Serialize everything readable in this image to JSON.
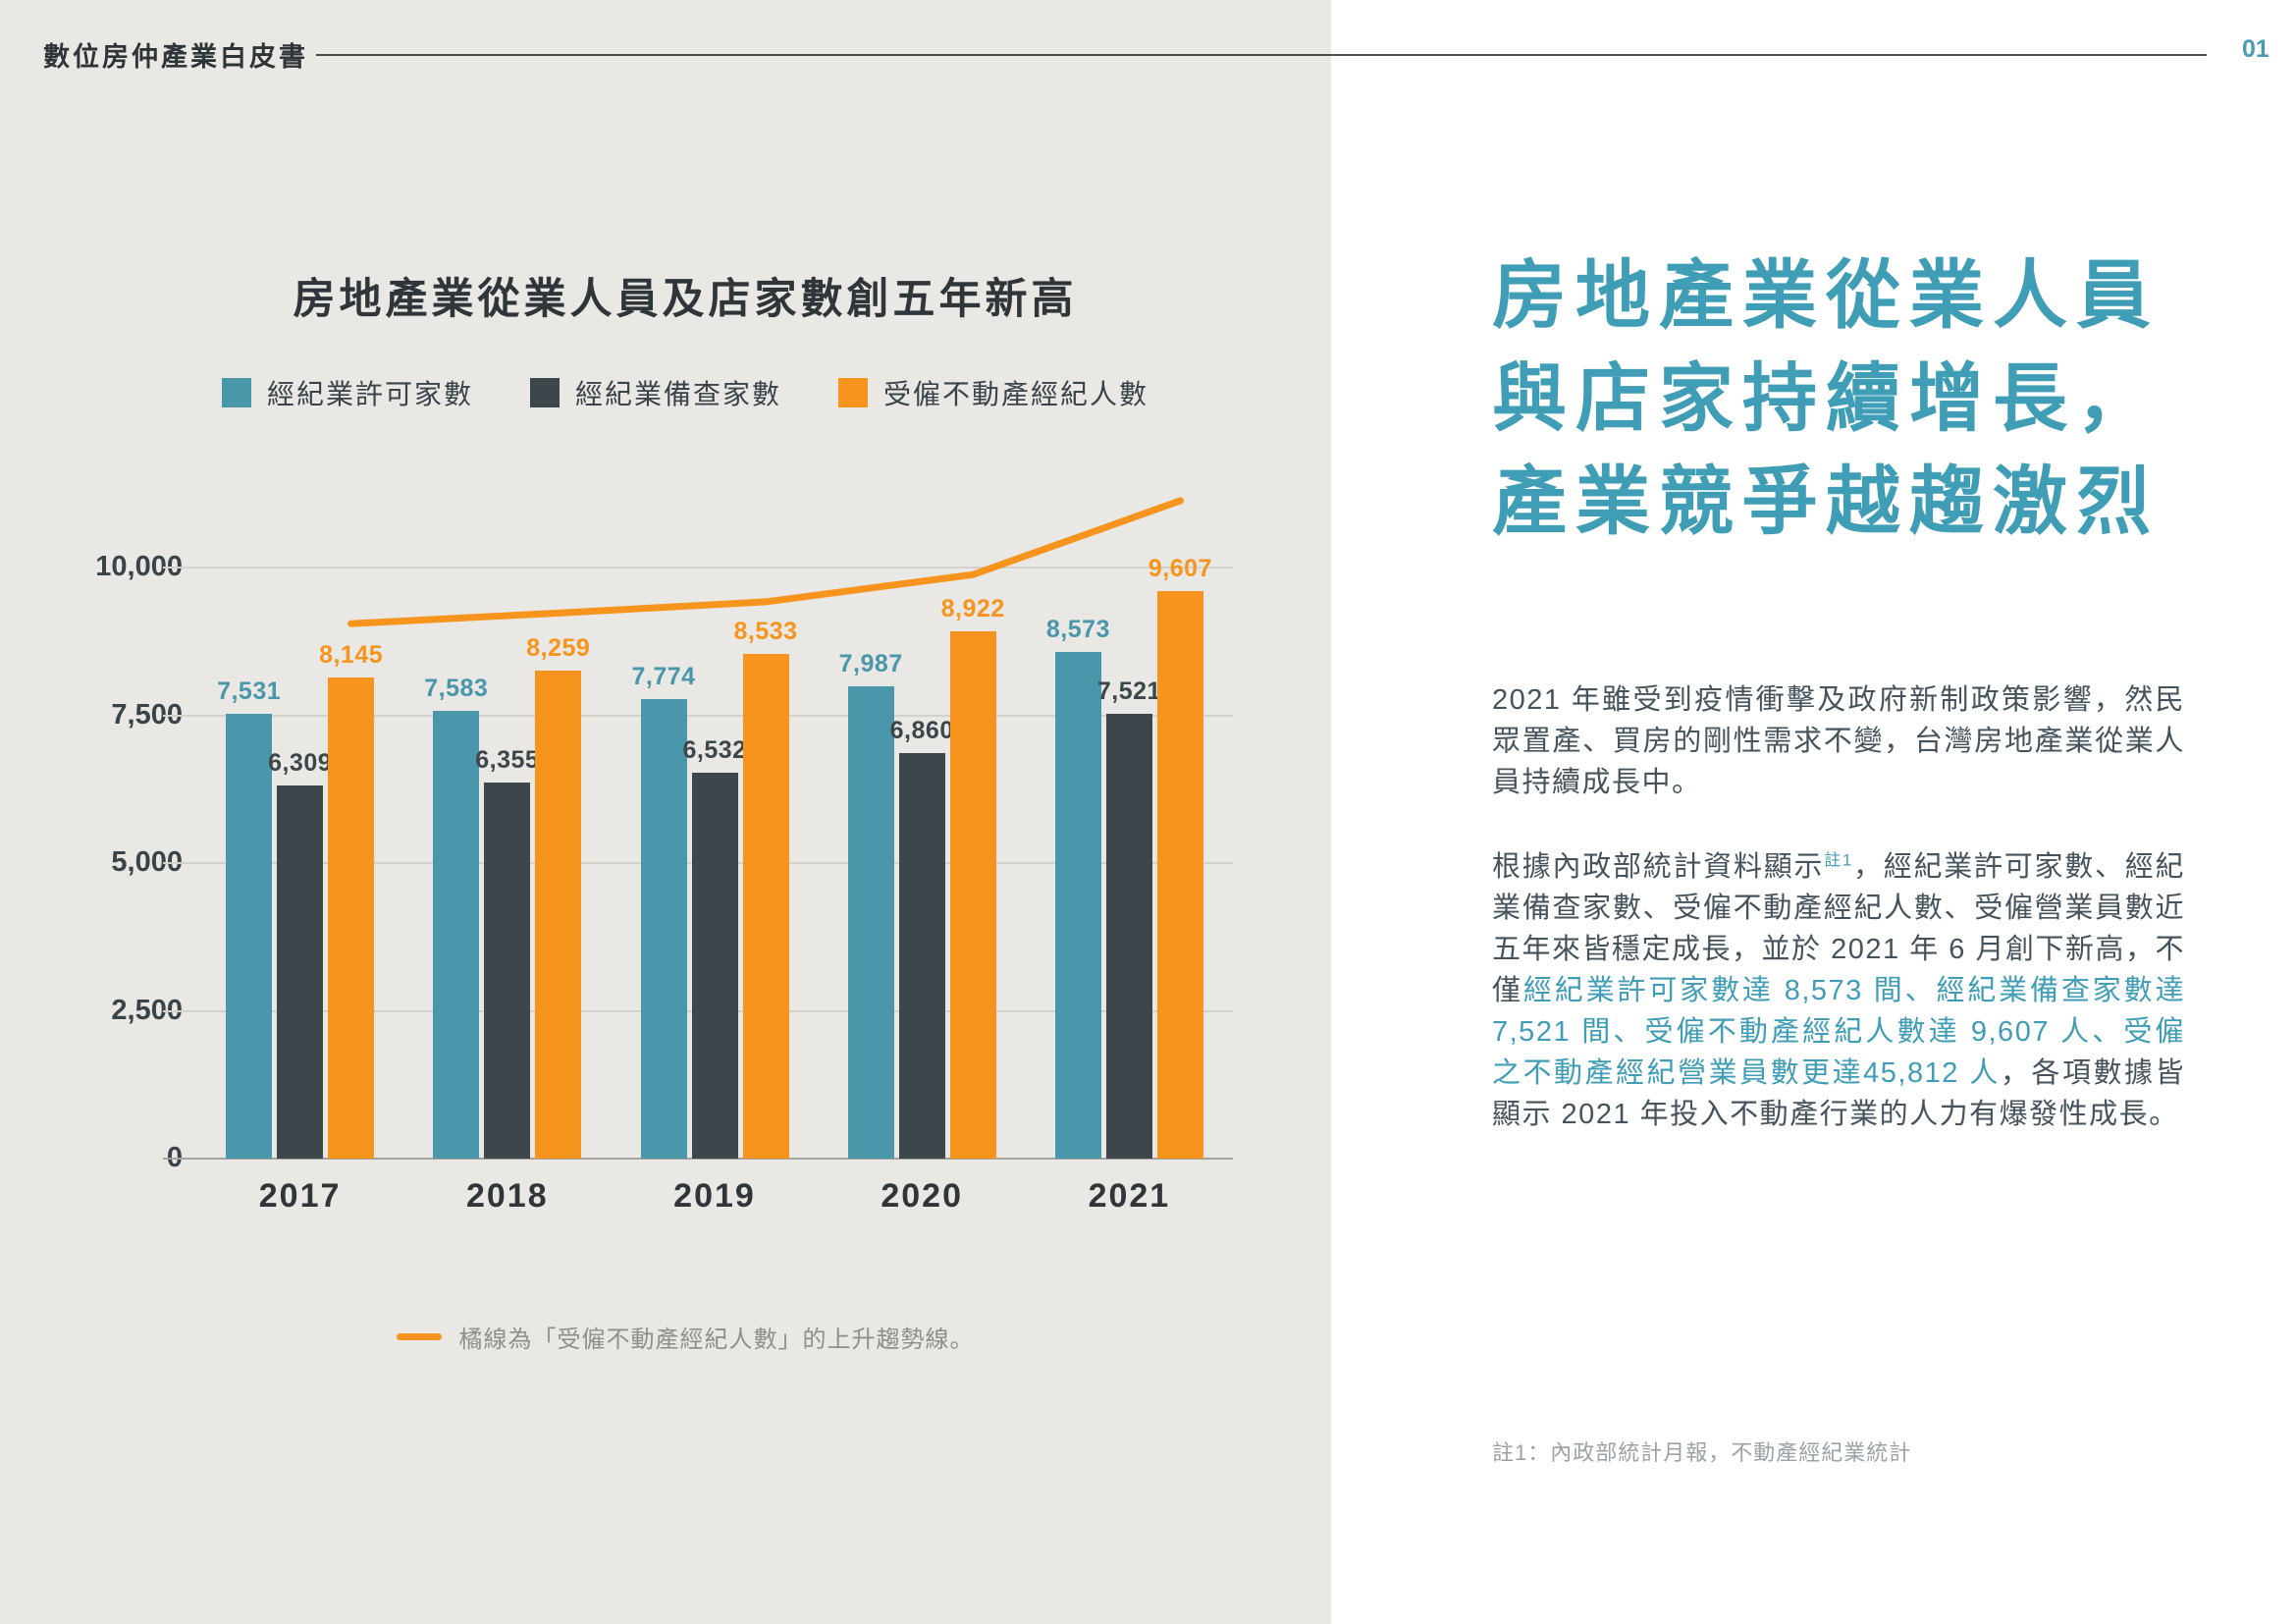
{
  "page": {
    "header": {
      "title": "數位房仲產業白皮書",
      "page_number": "01"
    },
    "colors": {
      "teal": "#4a96aa",
      "dark": "#3d464b",
      "orange": "#f7941d",
      "heading_teal": "#3f9db5",
      "left_background": "#e9e8e4",
      "body_text": "#46535c"
    }
  },
  "chart_data": {
    "type": "bar",
    "title": "房地產業從業人員及店家數創五年新高",
    "categories": [
      "2017",
      "2018",
      "2019",
      "2020",
      "2021"
    ],
    "series": [
      {
        "name": "經紀業許可家數",
        "color": "#4a96aa",
        "values": [
          7531,
          7583,
          7774,
          7987,
          8573
        ]
      },
      {
        "name": "經紀業備查家數",
        "color": "#3d464b",
        "values": [
          6309,
          6355,
          6532,
          6860,
          7521
        ]
      },
      {
        "name": "受僱不動產經紀人數",
        "color": "#f7941d",
        "values": [
          8145,
          8259,
          8533,
          8922,
          9607
        ]
      }
    ],
    "trendline": {
      "label": "受僱不動產經紀人數上升趨勢線",
      "color": "#f7941d",
      "values": [
        9050,
        9230,
        9420,
        9880,
        11130
      ]
    },
    "yticks": [
      0,
      2500,
      5000,
      7500,
      10000
    ],
    "ylim": [
      0,
      10000
    ],
    "grid": "horizontal",
    "legend_position": "top",
    "footnote": "橘線為「受僱不動產經紀人數」的上升趨勢線。"
  },
  "article": {
    "heading_lines": [
      "房地產業從業人員",
      "與店家持續增長，",
      "產業競爭越趨激烈"
    ],
    "paragraph1": "2021 年雖受到疫情衝擊及政府新制政策影響，然民眾置產、買房的剛性需求不變，台灣房地產業從業人員持續成長中。",
    "paragraph2_segments": [
      {
        "text": "根據內政部統計資料顯示",
        "style": "normal"
      },
      {
        "text": "註1",
        "style": "sup"
      },
      {
        "text": "，經紀業許可家數、經紀業備查家數、受僱不動產經紀人數、受僱營業員數近五年來皆穩定成長，並於 2021 年 6 月創下新高，不僅",
        "style": "normal"
      },
      {
        "text": "經紀業許可家數達 8,573 間、經紀業備查家數達 7,521 間、受僱不動產經紀人數達 9,607 人、受僱之不動產經紀營業員數更達45,812 人",
        "style": "teal"
      },
      {
        "text": "，各項數據皆顯示 2021 年投入不動產行業的人力有爆發性成長。",
        "style": "normal"
      }
    ],
    "footnote": "註1：內政部統計月報，不動產經紀業統計"
  }
}
